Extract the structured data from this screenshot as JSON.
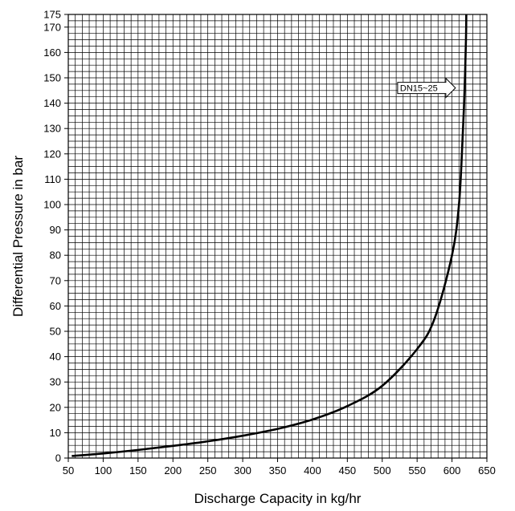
{
  "chart_data": {
    "type": "line",
    "title": "",
    "xlabel": "Discharge Capacity in kg/hr",
    "ylabel": "Differential Pressure in bar",
    "xlim": [
      50,
      650
    ],
    "ylim": [
      0,
      175
    ],
    "x_ticks": [
      50,
      100,
      150,
      200,
      250,
      300,
      350,
      400,
      450,
      500,
      550,
      600,
      650
    ],
    "y_ticks": [
      0,
      10,
      20,
      30,
      40,
      50,
      60,
      70,
      80,
      90,
      100,
      110,
      120,
      130,
      140,
      150,
      160,
      170,
      175
    ],
    "grid": true,
    "series": [
      {
        "x": [
          55,
          100,
          150,
          200,
          250,
          300,
          350,
          400,
          450,
          500,
          550,
          575,
          600,
          610,
          615,
          618,
          620,
          620.5
        ],
        "y": [
          0.8,
          1.8,
          3.2,
          4.8,
          6.6,
          8.8,
          11.5,
          15.2,
          20.5,
          28.5,
          43,
          55,
          80,
          100,
          125,
          145,
          165,
          175
        ]
      }
    ],
    "annotations": [
      {
        "text": "DN15~25",
        "x": 605,
        "y": 146
      }
    ]
  },
  "colors": {
    "grid": "#000000",
    "curve": "#000000",
    "background": "#ffffff"
  }
}
